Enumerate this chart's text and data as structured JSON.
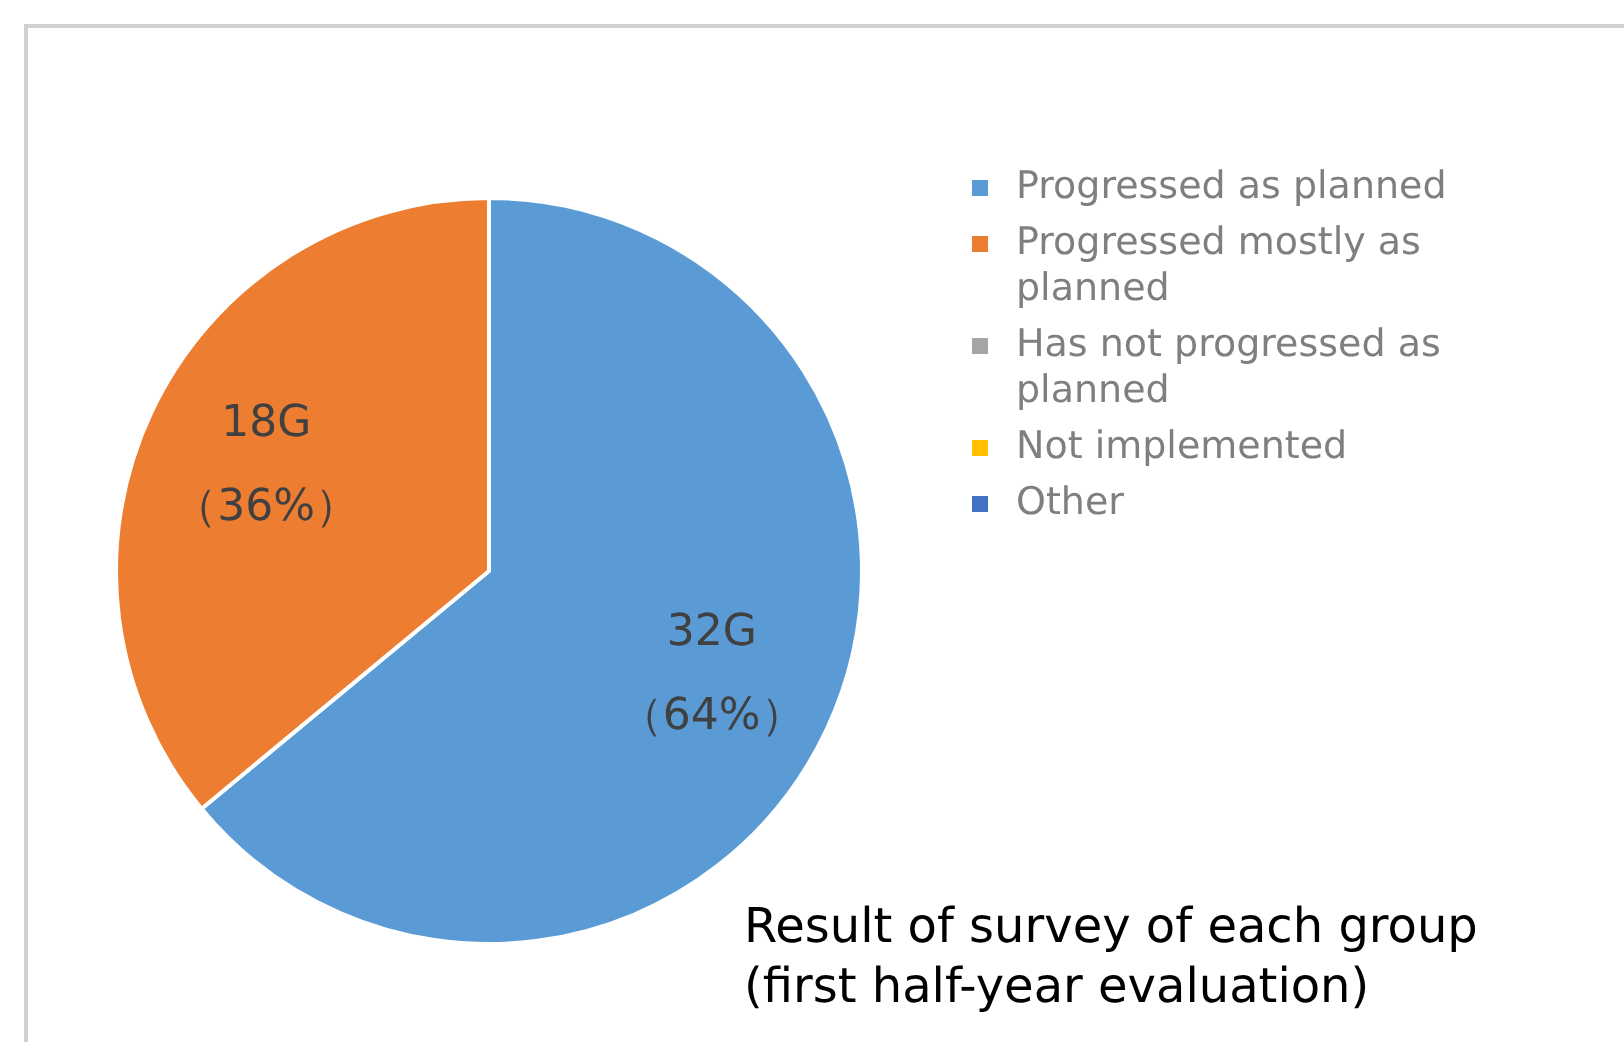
{
  "chart_data": {
    "type": "pie",
    "categories": [
      "Progressed as planned",
      "Progressed mostly as planned",
      "Has not progressed as planned",
      "Not implemented",
      "Other"
    ],
    "values": [
      32,
      18,
      0,
      0,
      0
    ],
    "colors": [
      "#5b9bd5",
      "#ed7d31",
      "#a5a5a5",
      "#ffc000",
      "#4472c4"
    ],
    "value_labels": [
      "32G\n（64%）",
      "18G\n（36%）",
      null,
      null,
      null
    ],
    "legend": "right",
    "annotations": [
      "Result of survey of each group\n(first half-year evaluation)"
    ]
  }
}
